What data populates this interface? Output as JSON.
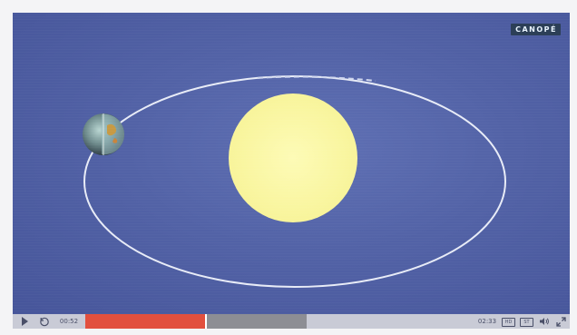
{
  "player": {
    "logo_text": "CANOPÉ",
    "current_time": "00:52",
    "total_time": "02:33",
    "quality_label": "HD",
    "subtitles_label": "ST",
    "progress_fraction": 0.339,
    "colors": {
      "background": "#5262a6",
      "sun": "#fbf8a3",
      "orbit": "#e8ecf7",
      "progress_played": "#e2503e",
      "progress_rest": "#8d8e94",
      "controls_bg": "#c9cbd6"
    }
  },
  "icons": {
    "play": "play-icon",
    "replay": "replay-icon",
    "volume": "volume-icon",
    "fullscreen": "fullscreen-icon"
  }
}
